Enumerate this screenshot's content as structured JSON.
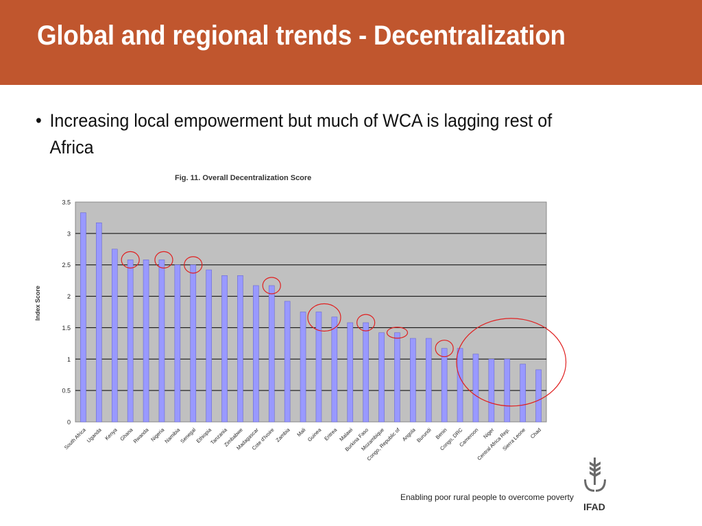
{
  "slide": {
    "title": "Global and regional trends - Decentralization",
    "bullet": "Increasing local empowerment but much of WCA is lagging rest of Africa",
    "bullet_symbol": "•",
    "tagline": "Enabling poor rural people to overcome poverty",
    "logo_text": "IFAD",
    "header_color": "#c0562e"
  },
  "chart_data": {
    "type": "bar",
    "title": "Fig. 11. Overall Decentralization Score",
    "xlabel": "",
    "ylabel": "Index Score",
    "ylim": [
      0,
      3.5
    ],
    "yticks": [
      "0",
      "0.5",
      "1",
      "1.5",
      "2",
      "2.5",
      "3",
      "3.5"
    ],
    "grid": true,
    "bar_color": "#9999ff",
    "plot_background": "#c0c0c0",
    "highlight_color": "#e02020",
    "categories": [
      "South Africa",
      "Uganda",
      "Kenya",
      "Ghana",
      "Rwanda",
      "Nigeria",
      "Namibia",
      "Senegal",
      "Ethiopia",
      "Tanzania",
      "Zimbabwe",
      "Madagascar",
      "Cote d'Ivoire",
      "Zambia",
      "Mali",
      "Guinea",
      "Eritrea",
      "Malawi",
      "Burkina Faso",
      "Mozambique",
      "Congo, Republic of",
      "Angola",
      "Burundi",
      "Benin",
      "Congo, DRC",
      "Cameroon",
      "Niger",
      "Central Africa Rep.",
      "Sierra Leone",
      "Chad"
    ],
    "values": [
      3.33,
      3.17,
      2.75,
      2.58,
      2.58,
      2.58,
      2.5,
      2.5,
      2.42,
      2.33,
      2.33,
      2.17,
      2.17,
      1.92,
      1.75,
      1.75,
      1.67,
      1.58,
      1.58,
      1.42,
      1.42,
      1.33,
      1.33,
      1.17,
      1.17,
      1.08,
      1.0,
      1.0,
      0.92,
      0.83
    ],
    "circled": [
      "Ghana",
      "Nigeria",
      "Senegal",
      "Cote d'Ivoire",
      "Guinea",
      "Burkina Faso",
      "Congo, Republic of",
      "Benin",
      "Cameroon",
      "Niger",
      "Central Africa Rep.",
      "Sierra Leone",
      "Chad"
    ]
  }
}
